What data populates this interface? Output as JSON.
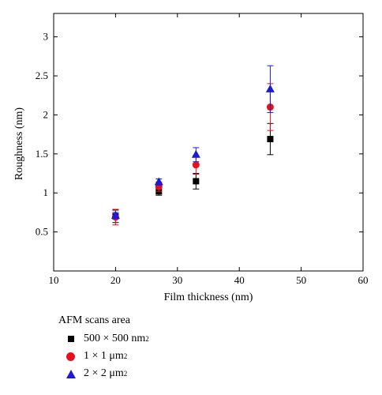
{
  "chart_data": {
    "type": "scatter",
    "xlabel": "Film thickness (nm)",
    "ylabel": "Roughness (nm)",
    "xlim": [
      10,
      60
    ],
    "ylim": [
      0,
      3.3
    ],
    "x_ticks": [
      10,
      20,
      30,
      40,
      50,
      60
    ],
    "y_ticks": [
      0.5,
      1,
      1.5,
      2,
      2.5,
      3
    ],
    "x_tick_labels": [
      "10",
      "20",
      "30",
      "40",
      "50",
      "60"
    ],
    "y_tick_labels": [
      "0.5",
      "1",
      "1.5",
      "2",
      "2.5",
      "3"
    ],
    "grid": false,
    "legend_position": "below",
    "legend_title": "AFM scans area",
    "series": [
      {
        "name": "500 × 500 nm",
        "name_sup": "2",
        "marker": "square",
        "color": "#000000",
        "x": [
          20,
          27,
          33,
          45
        ],
        "y": [
          0.7,
          1.02,
          1.15,
          1.69
        ],
        "err": [
          0.08,
          0.05,
          0.1,
          0.2
        ]
      },
      {
        "name": "1 × 1 μm",
        "name_sup": "2",
        "marker": "circle",
        "color": "#e8101b",
        "x": [
          20,
          27,
          33,
          45
        ],
        "y": [
          0.69,
          1.08,
          1.36,
          2.1
        ],
        "err": [
          0.1,
          0.06,
          0.12,
          0.3
        ]
      },
      {
        "name": "2 × 2 μm",
        "name_sup": "2",
        "marker": "triangle",
        "color": "#1b1bd6",
        "x": [
          20,
          27,
          33,
          45
        ],
        "y": [
          0.71,
          1.14,
          1.49,
          2.33
        ],
        "err": [
          0.04,
          0.04,
          0.09,
          0.3
        ]
      }
    ]
  }
}
